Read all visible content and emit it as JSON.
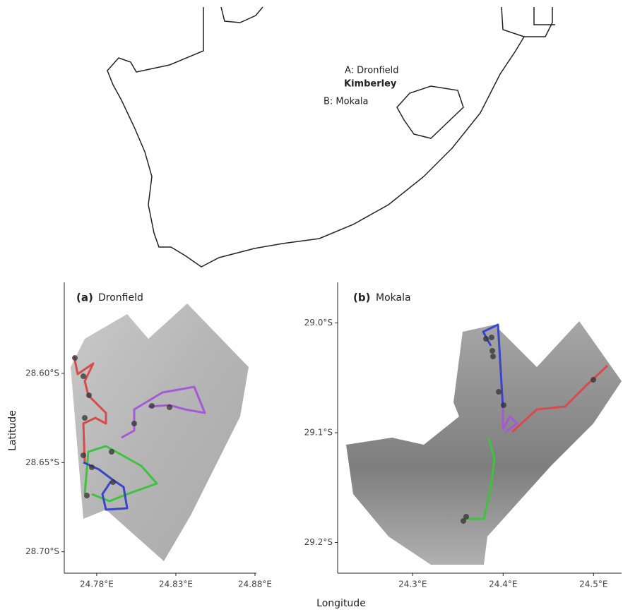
{
  "overview": {
    "labels": [
      "A: Dronfield",
      "Kimberley",
      "B: Mokala"
    ]
  },
  "panels": [
    {
      "tag": "(a)",
      "title": "Dronfield",
      "xlim": [
        24.7595,
        24.8809
      ],
      "ylim": [
        28.712,
        28.549
      ],
      "xticks": [
        {
          "value": 24.78,
          "label": "24.78°E"
        },
        {
          "value": 24.83,
          "label": "24.83°E"
        },
        {
          "value": 24.88,
          "label": "24.88°E"
        }
      ],
      "yticks": [
        {
          "value": 28.6,
          "label": "28.60°S"
        },
        {
          "value": 28.65,
          "label": "28.65°S"
        },
        {
          "value": 28.7,
          "label": "28.70°S"
        }
      ]
    },
    {
      "tag": "(b)",
      "title": "Mokala",
      "xlim": [
        24.217,
        24.531
      ],
      "ylim": [
        29.228,
        28.963
      ],
      "xticks": [
        {
          "value": 24.3,
          "label": "24.3°E"
        },
        {
          "value": 24.4,
          "label": "24.4°E"
        },
        {
          "value": 24.5,
          "label": "24.5°E"
        }
      ],
      "yticks": [
        {
          "value": 29.0,
          "label": "29.0°S"
        },
        {
          "value": 29.1,
          "label": "29.1°S"
        },
        {
          "value": 29.2,
          "label": "29.2°S"
        }
      ]
    }
  ],
  "ylabel": "Latitude",
  "xlabel": "Longitude"
}
